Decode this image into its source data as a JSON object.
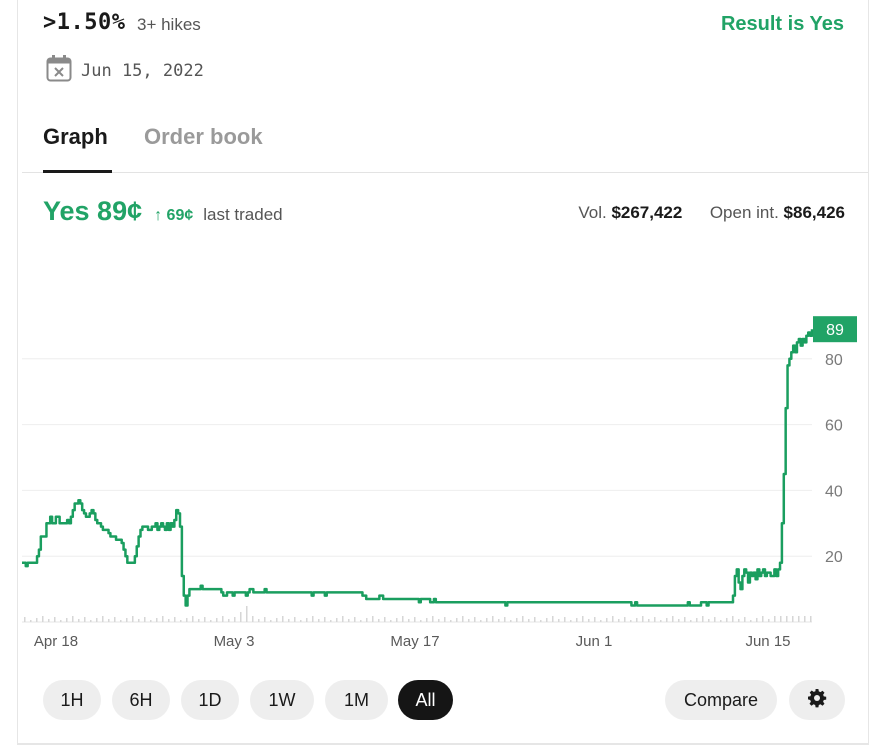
{
  "market": {
    "title": ">1.50%",
    "subtitle": "3+ hikes",
    "result": "Result is Yes",
    "date": "Jun 15, 2022"
  },
  "tabs": [
    {
      "label": "Graph",
      "active": true
    },
    {
      "label": "Order book",
      "active": false
    }
  ],
  "price": {
    "main": "Yes 89¢",
    "change": "↑ 69¢",
    "suffix": "last traded"
  },
  "stats": {
    "vol_label": "Vol.",
    "vol_value": "$267,422",
    "oi_label": "Open int.",
    "oi_value": "$86,426"
  },
  "range_buttons": [
    {
      "label": "1H",
      "active": false
    },
    {
      "label": "6H",
      "active": false
    },
    {
      "label": "1D",
      "active": false
    },
    {
      "label": "1W",
      "active": false
    },
    {
      "label": "1M",
      "active": false
    },
    {
      "label": "All",
      "active": true
    }
  ],
  "actions": {
    "compare": "Compare"
  },
  "colors": {
    "accent": "#21a366",
    "line": "#1a9e5f",
    "active_btn": "#151515"
  },
  "icons": {
    "date": "calendar-x-icon",
    "settings": "gear-icon",
    "change": "arrow-up-icon"
  },
  "chart_data": {
    "type": "line",
    "x_ticks": [
      "Apr 18",
      "May 3",
      "May 17",
      "Jun 1",
      "Jun 15"
    ],
    "y_ticks": [
      20,
      40,
      60,
      80
    ],
    "ylim": [
      0,
      100
    ],
    "last_value": 89,
    "grid": true,
    "series": [
      {
        "values": [
          18,
          18,
          17,
          18,
          18,
          18,
          18,
          18,
          20,
          22,
          26,
          26,
          26,
          30,
          30,
          32,
          30,
          30,
          32,
          32,
          30,
          30,
          30,
          30,
          31,
          30,
          32,
          34,
          36,
          36,
          37,
          36,
          34,
          33,
          32,
          32,
          33,
          34,
          33,
          31,
          30,
          30,
          29,
          28,
          28,
          28,
          27,
          26,
          26,
          26,
          25,
          25,
          25,
          24,
          22,
          20,
          18,
          18,
          18,
          18,
          20,
          23,
          26,
          28,
          29,
          29,
          29,
          28,
          28,
          29,
          29,
          30,
          28,
          29,
          30,
          29,
          28,
          30,
          28,
          30,
          29,
          31,
          34,
          33,
          29,
          14,
          8,
          5,
          8,
          10,
          10,
          10,
          10,
          10,
          10,
          11,
          10,
          10,
          10,
          10,
          10,
          10,
          10,
          10,
          10,
          10,
          9,
          8,
          8,
          9,
          9,
          9,
          8,
          9,
          9,
          9,
          9,
          9,
          9,
          8,
          9,
          10,
          10,
          9,
          9,
          9,
          9,
          9,
          9,
          10,
          9,
          9,
          9,
          9,
          9,
          9,
          9,
          9,
          9,
          9,
          9,
          9,
          9,
          9,
          9,
          9,
          9,
          9,
          9,
          9,
          9,
          9,
          9,
          9,
          8,
          9,
          9,
          9,
          9,
          9,
          9,
          8,
          9,
          9,
          9,
          9,
          9,
          9,
          9,
          9,
          9,
          9,
          9,
          9,
          9,
          9,
          9,
          9,
          9,
          9,
          9,
          8,
          8,
          7,
          7,
          7,
          7,
          7,
          7,
          7,
          8,
          8,
          7,
          7,
          7,
          7,
          7,
          7,
          7,
          7,
          7,
          7,
          7,
          7,
          7,
          7,
          7,
          7,
          7,
          7,
          7,
          6,
          7,
          7,
          7,
          7,
          7,
          6,
          6,
          7,
          6,
          6,
          6,
          6,
          6,
          6,
          6,
          6,
          6,
          6,
          6,
          6,
          6,
          6,
          6,
          6,
          6,
          6,
          6,
          6,
          6,
          6,
          6,
          6,
          6,
          6,
          6,
          6,
          6,
          6,
          6,
          6,
          6,
          6,
          6,
          6,
          6,
          5,
          6,
          6,
          6,
          6,
          6,
          6,
          6,
          6,
          6,
          6,
          6,
          6,
          6,
          6,
          6,
          6,
          6,
          6,
          6,
          6,
          6,
          6,
          6,
          6,
          6,
          6,
          6,
          6,
          6,
          6,
          6,
          6,
          6,
          6,
          6,
          6,
          6,
          6,
          6,
          6,
          6,
          6,
          6,
          6,
          6,
          6,
          6,
          6,
          6,
          6,
          6,
          6,
          6,
          6,
          6,
          6,
          6,
          6,
          6,
          6,
          6,
          6,
          6,
          6,
          6,
          6,
          5,
          5,
          6,
          5,
          5,
          5,
          5,
          5,
          5,
          5,
          5,
          5,
          5,
          5,
          5,
          5,
          5,
          5,
          5,
          5,
          5,
          5,
          5,
          5,
          5,
          5,
          5,
          5,
          5,
          5,
          6,
          5,
          5,
          5,
          5,
          5,
          5,
          6,
          6,
          6,
          5,
          6,
          6,
          6,
          6,
          6,
          6,
          6,
          6,
          6,
          6,
          6,
          6,
          6,
          8,
          14,
          16,
          12,
          10,
          14,
          16,
          15,
          12,
          15,
          14,
          15,
          13,
          16,
          14,
          15,
          16,
          14,
          15,
          15,
          14,
          14,
          16,
          14,
          16,
          18,
          30,
          45,
          65,
          78,
          80,
          82,
          84,
          82,
          85,
          86,
          84,
          86,
          85,
          87,
          88,
          87,
          89
        ]
      }
    ]
  }
}
